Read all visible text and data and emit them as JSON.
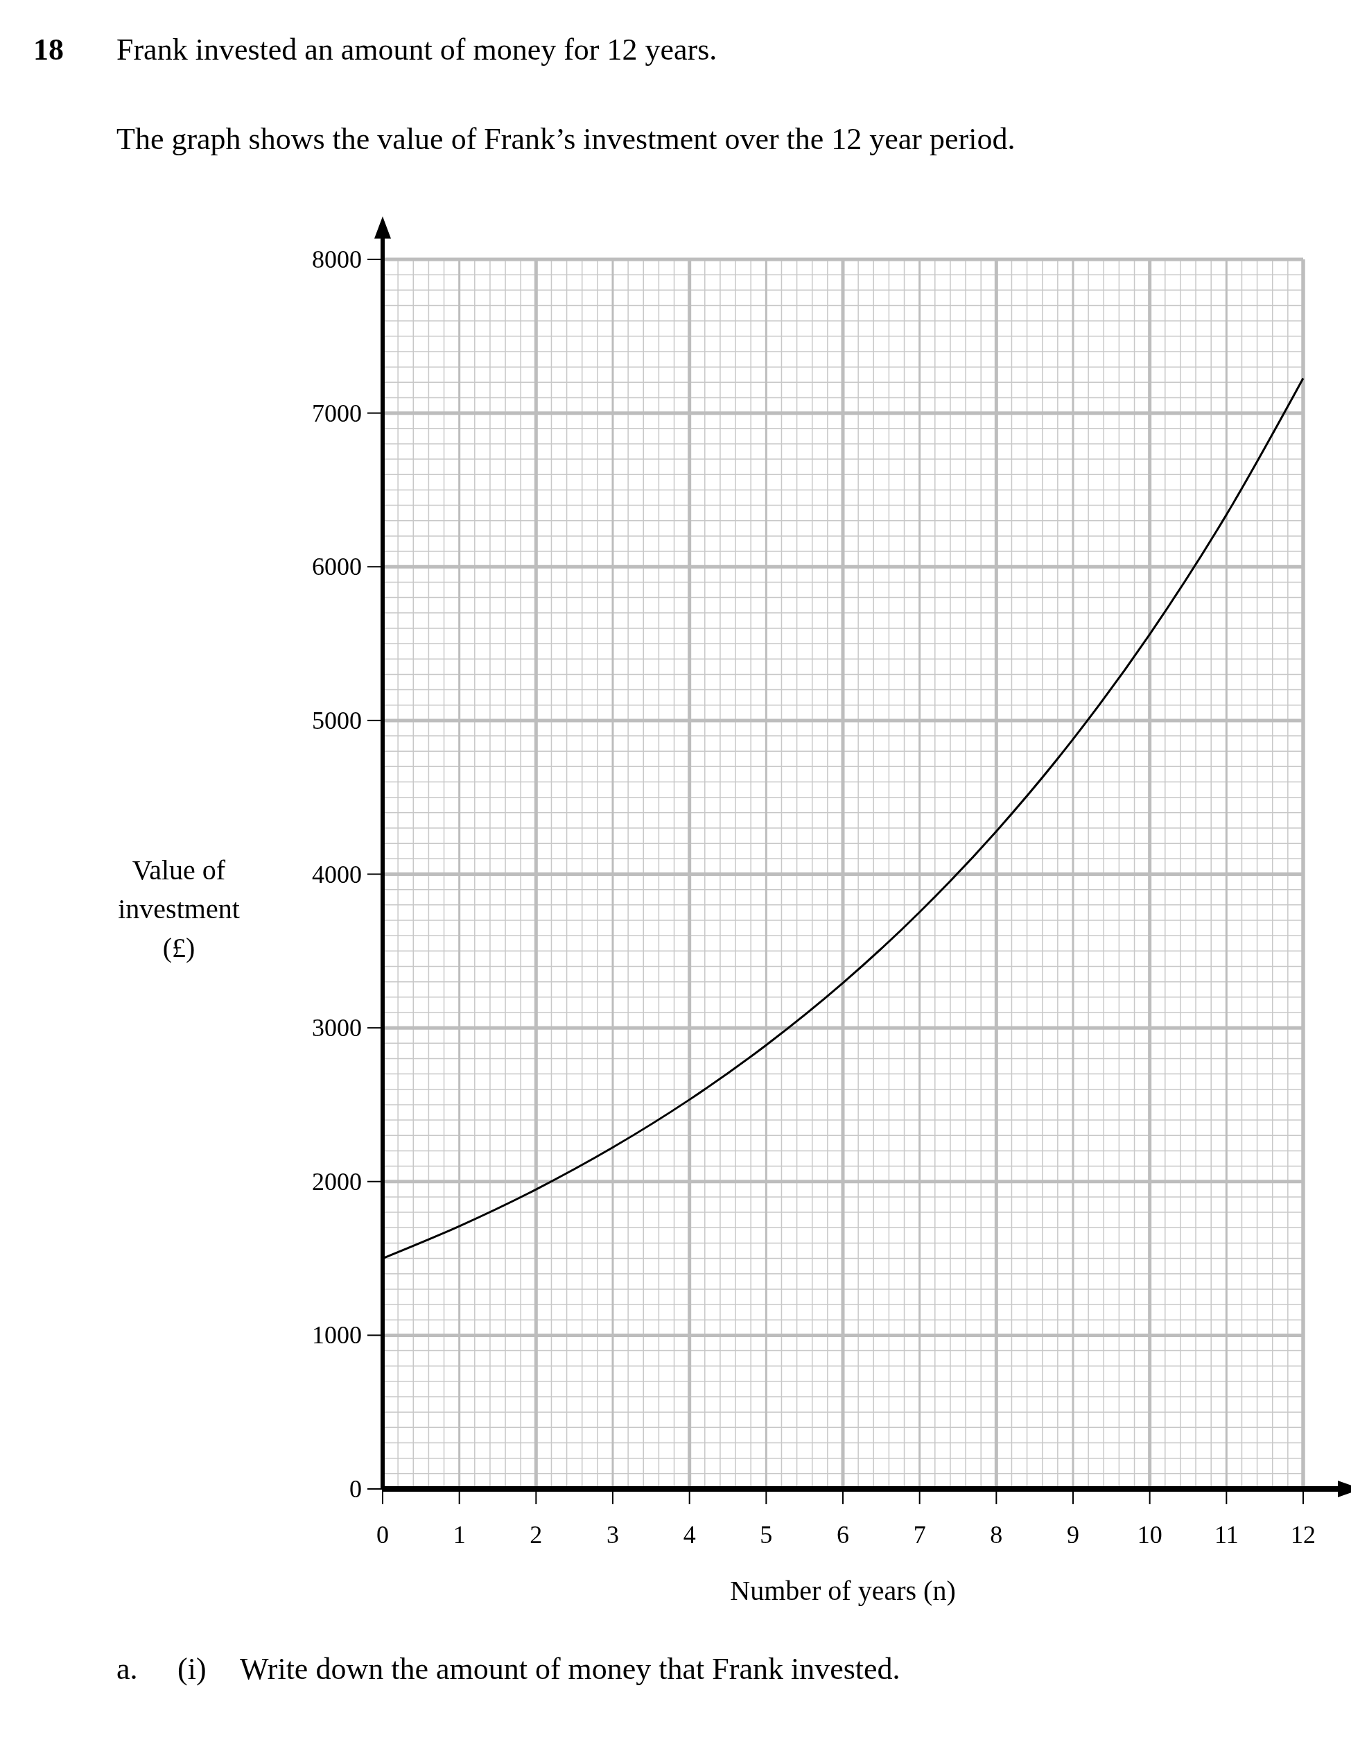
{
  "chart_data": {
    "type": "line",
    "title": "Frank invested an amount of money for 12 years.",
    "subtitle": "The graph shows the value of Frank’s investment over the 12 year period.",
    "xlabel": "Number of years (n)",
    "ylabel": "Value of investment (£)",
    "annotations": [
      "18",
      "a.",
      "(i)",
      "Write down the amount of money that Frank invested."
    ],
    "x": [
      0,
      1,
      2,
      3,
      4,
      5,
      6,
      7,
      8,
      9,
      10,
      11,
      12
    ],
    "series": [
      {
        "color": "#000000",
        "values": [
          1500,
          1710,
          1949,
          2222,
          2533,
          2888,
          3292,
          3753,
          4279,
          4878,
          5561,
          6339,
          7226
        ]
      }
    ],
    "xlim": [
      0,
      12
    ],
    "xticks": [
      0,
      1,
      2,
      3,
      4,
      5,
      6,
      7,
      8,
      9,
      10,
      11,
      12
    ],
    "ylim": [
      0,
      8000
    ],
    "yticks": [
      0,
      1000,
      2000,
      3000,
      4000,
      5000,
      6000,
      7000,
      8000
    ],
    "grid": true,
    "marker": "none",
    "line_style": "solid"
  }
}
